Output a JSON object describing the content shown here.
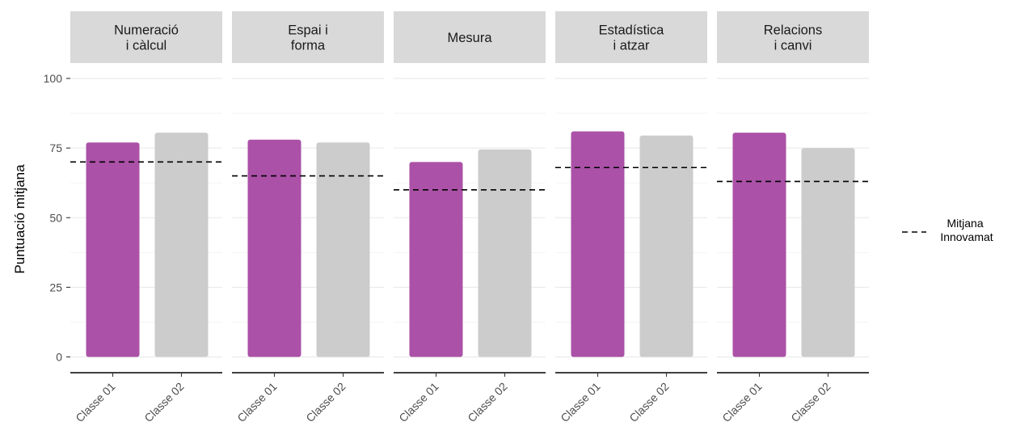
{
  "chart_data": {
    "type": "bar",
    "ylabel": "Puntuació mitjana",
    "ylim": [
      0,
      100
    ],
    "yticks": [
      0,
      25,
      50,
      75,
      100
    ],
    "categories": [
      "Classe 01",
      "Classe 02"
    ],
    "panels": [
      {
        "title_lines": [
          "Numeració",
          "i càlcul"
        ],
        "values": [
          77,
          80.5
        ],
        "reference": 70
      },
      {
        "title_lines": [
          "Espai i",
          "forma"
        ],
        "values": [
          78,
          77
        ],
        "reference": 65
      },
      {
        "title_lines": [
          "Mesura"
        ],
        "values": [
          70,
          74.5
        ],
        "reference": 60
      },
      {
        "title_lines": [
          "Estadística",
          "i atzar"
        ],
        "values": [
          81,
          79.5
        ],
        "reference": 68
      },
      {
        "title_lines": [
          "Relacions",
          "i canvi"
        ],
        "values": [
          80.5,
          75
        ],
        "reference": 63
      }
    ],
    "bar_colors": [
      "#AB51A7",
      "#CCCCCC"
    ],
    "grid": true,
    "legend": {
      "position": "right",
      "label_lines": [
        "Mitjana",
        "Innovamat"
      ],
      "line_style": "dashed",
      "line_color": "#000000"
    }
  }
}
